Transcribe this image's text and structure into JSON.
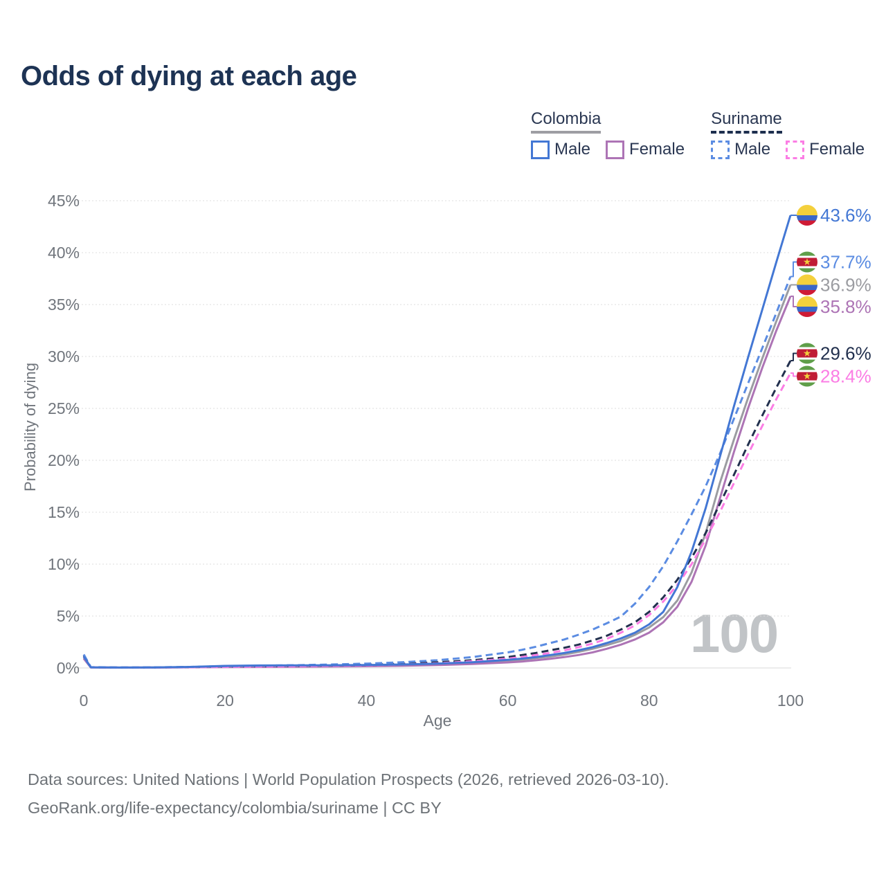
{
  "title": "Odds of dying at each age",
  "legend": {
    "groups": [
      {
        "label": "Colombia",
        "style": "solid",
        "underline_color": "#9e9ea3",
        "items": [
          {
            "label": "Male",
            "color": "#4377d4"
          },
          {
            "label": "Female",
            "color": "#ad74b5"
          }
        ]
      },
      {
        "label": "Suriname",
        "style": "dashed",
        "underline_color": "#1d2f4e",
        "items": [
          {
            "label": "Male",
            "color": "#5b8ce2"
          },
          {
            "label": "Female",
            "color": "#fb7de4"
          }
        ]
      }
    ]
  },
  "axes": {
    "y": {
      "label": "Probability of dying",
      "tick_labels": [
        "0%",
        "5%",
        "10%",
        "15%",
        "20%",
        "25%",
        "30%",
        "35%",
        "40%",
        "45%"
      ],
      "min": 0,
      "max": 45
    },
    "x": {
      "label": "Age",
      "tick_labels": [
        "0",
        "20",
        "40",
        "60",
        "80",
        "100"
      ],
      "min": 0,
      "max": 100
    }
  },
  "watermark": "100",
  "footer": {
    "line1": "Data sources: United Nations | World Population Prospects (2026, retrieved 2026-03-10).",
    "line2": "GeoRank.org/life-expectancy/colombia/suriname | CC BY"
  },
  "flags": {
    "colombia": {
      "stripes": [
        {
          "color": "#f4d03c",
          "y": -15,
          "h": 15
        },
        {
          "color": "#3a67c8",
          "y": 0,
          "h": 7.5
        },
        {
          "color": "#cf1b35",
          "y": 7.5,
          "h": 7.5
        }
      ]
    },
    "suriname": {
      "stripes": [
        {
          "color": "#5f9e49",
          "y": -15,
          "h": 6
        },
        {
          "color": "#ffffff",
          "y": -9,
          "h": 3
        },
        {
          "color": "#c01d35",
          "y": -6,
          "h": 12
        },
        {
          "color": "#ffffff",
          "y": 6,
          "h": 3
        },
        {
          "color": "#5f9e49",
          "y": 9,
          "h": 6
        }
      ],
      "star_color": "#f2cf3c"
    }
  },
  "chart_data": {
    "type": "line",
    "xlabel": "Age",
    "ylabel": "Probability of dying",
    "xlim": [
      0,
      100
    ],
    "ylim": [
      0,
      45
    ],
    "grid": true,
    "legend_position": "top-right",
    "x_ages": [
      0,
      1,
      5,
      10,
      15,
      20,
      25,
      30,
      35,
      40,
      45,
      50,
      55,
      60,
      62,
      64,
      66,
      68,
      70,
      72,
      74,
      76,
      78,
      80,
      82,
      84,
      86,
      88,
      90,
      92,
      94,
      96,
      98,
      100
    ],
    "series": [
      {
        "name": "Colombia Male",
        "country": "Colombia",
        "sex": "Male",
        "dash": "solid",
        "color": "#4377d4",
        "flag": "colombia",
        "end_label": "43.6%",
        "end_value": 43.6,
        "label_anchor_pct": 43.6,
        "values": [
          1.1,
          0.06,
          0.04,
          0.05,
          0.1,
          0.2,
          0.24,
          0.25,
          0.26,
          0.28,
          0.33,
          0.42,
          0.55,
          0.78,
          0.9,
          1.05,
          1.25,
          1.45,
          1.7,
          2.0,
          2.4,
          2.85,
          3.4,
          4.2,
          5.4,
          7.8,
          11.2,
          15.4,
          20.3,
          25.2,
          29.9,
          34.5,
          39.1,
          43.6
        ]
      },
      {
        "name": "Suriname Male",
        "country": "Suriname",
        "sex": "Male",
        "dash": "dashed",
        "color": "#5b8ce2",
        "flag": "suriname",
        "end_label": "37.7%",
        "end_value": 37.7,
        "label_anchor_pct": 39.1,
        "values": [
          1.3,
          0.08,
          0.05,
          0.06,
          0.1,
          0.18,
          0.22,
          0.27,
          0.33,
          0.42,
          0.55,
          0.75,
          1.05,
          1.5,
          1.75,
          2.05,
          2.4,
          2.75,
          3.2,
          3.7,
          4.3,
          4.95,
          6.2,
          7.8,
          9.8,
          12.2,
          14.8,
          17.5,
          20.6,
          24.0,
          27.4,
          30.8,
          34.2,
          37.7
        ]
      },
      {
        "name": "Colombia Combined",
        "country": "Colombia",
        "sex": "Both",
        "dash": "solid",
        "color": "#9b9ca1",
        "flag": "colombia",
        "end_label": "36.9%",
        "end_value": 36.9,
        "label_anchor_pct": 36.9,
        "values": [
          1.0,
          0.06,
          0.04,
          0.04,
          0.08,
          0.14,
          0.17,
          0.19,
          0.21,
          0.24,
          0.29,
          0.37,
          0.5,
          0.7,
          0.8,
          0.95,
          1.1,
          1.3,
          1.55,
          1.85,
          2.2,
          2.6,
          3.2,
          3.9,
          4.9,
          6.5,
          9.2,
          13.0,
          17.8,
          22.0,
          26.0,
          29.8,
          33.4,
          36.9
        ]
      },
      {
        "name": "Colombia Female",
        "country": "Colombia",
        "sex": "Female",
        "dash": "solid",
        "color": "#ad74b5",
        "flag": "colombia",
        "end_label": "35.8%",
        "end_value": 35.8,
        "label_anchor_pct": 34.8,
        "values": [
          0.9,
          0.05,
          0.03,
          0.04,
          0.06,
          0.08,
          0.1,
          0.12,
          0.14,
          0.17,
          0.21,
          0.28,
          0.38,
          0.53,
          0.62,
          0.74,
          0.88,
          1.05,
          1.25,
          1.5,
          1.85,
          2.25,
          2.75,
          3.4,
          4.4,
          5.9,
          8.3,
          11.8,
          16.3,
          20.8,
          25.0,
          28.9,
          32.5,
          35.8
        ]
      },
      {
        "name": "Suriname Combined",
        "country": "Suriname",
        "sex": "Both",
        "dash": "dashed",
        "color": "#22304e",
        "flag": "suriname",
        "end_label": "29.6%",
        "end_value": 29.6,
        "label_anchor_pct": 30.3,
        "values": [
          1.2,
          0.07,
          0.04,
          0.05,
          0.09,
          0.13,
          0.16,
          0.2,
          0.25,
          0.31,
          0.4,
          0.55,
          0.75,
          1.05,
          1.25,
          1.45,
          1.7,
          1.95,
          2.25,
          2.65,
          3.1,
          3.7,
          4.4,
          5.4,
          6.8,
          8.5,
          10.6,
          13.0,
          15.8,
          18.6,
          21.5,
          24.3,
          27.0,
          29.6
        ]
      },
      {
        "name": "Suriname Female",
        "country": "Suriname",
        "sex": "Female",
        "dash": "dashed",
        "color": "#fb7de4",
        "flag": "suriname",
        "end_label": "28.4%",
        "end_value": 28.4,
        "label_anchor_pct": 28.1,
        "values": [
          1.1,
          0.06,
          0.04,
          0.04,
          0.07,
          0.1,
          0.13,
          0.16,
          0.2,
          0.25,
          0.33,
          0.45,
          0.65,
          0.9,
          1.05,
          1.25,
          1.45,
          1.7,
          2.0,
          2.35,
          2.8,
          3.4,
          4.1,
          5.1,
          6.4,
          8.0,
          10.0,
          12.4,
          15.0,
          17.8,
          20.6,
          23.3,
          25.9,
          28.4
        ]
      }
    ]
  }
}
